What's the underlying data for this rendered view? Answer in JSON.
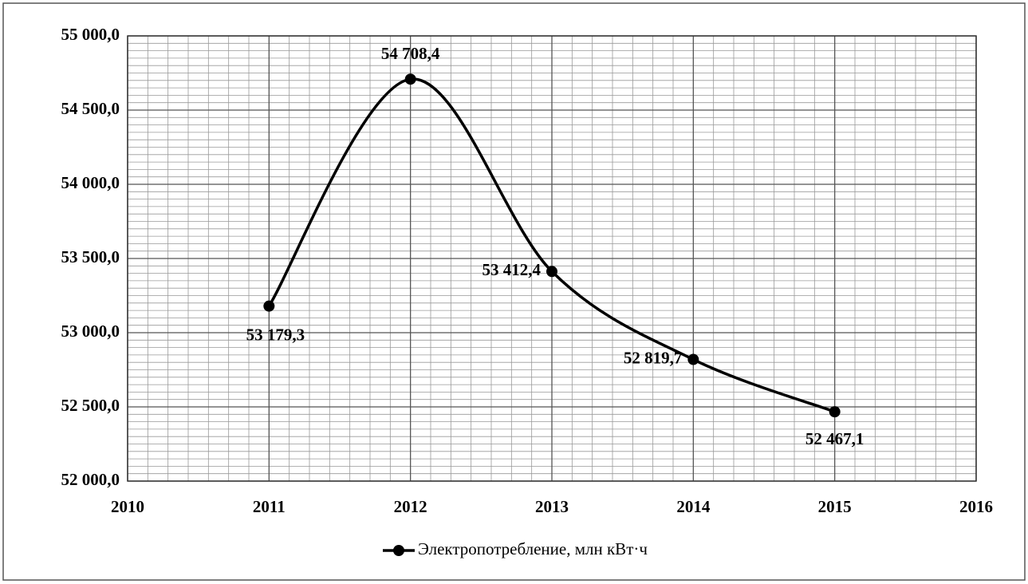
{
  "chart_data": {
    "type": "line",
    "x": [
      2011,
      2012,
      2013,
      2014,
      2015
    ],
    "series": [
      {
        "name": "Электропотребление, млн кВт·ч",
        "color": "#000000",
        "values": [
          53179.3,
          54708.4,
          53412.4,
          52819.7,
          52467.1
        ],
        "value_labels": [
          "53 179,3",
          "54 708,4",
          "53 412,4",
          "52 819,7",
          "52 467,1"
        ]
      }
    ],
    "xlim": [
      2010,
      2016
    ],
    "xticks": [
      2010,
      2011,
      2012,
      2013,
      2014,
      2015,
      2016
    ],
    "ylim": [
      52000,
      55000
    ],
    "yticks": [
      {
        "value": 52000,
        "label": "52 000,0"
      },
      {
        "value": 52500,
        "label": "52 500,0"
      },
      {
        "value": 53000,
        "label": "53 000,0"
      },
      {
        "value": 53500,
        "label": "53 500,0"
      },
      {
        "value": 54000,
        "label": "54 000,0"
      },
      {
        "value": 54500,
        "label": "54 500,0"
      },
      {
        "value": 55000,
        "label": "55 000,0"
      }
    ],
    "grid": true,
    "smooth": true,
    "legend": "bottom"
  }
}
